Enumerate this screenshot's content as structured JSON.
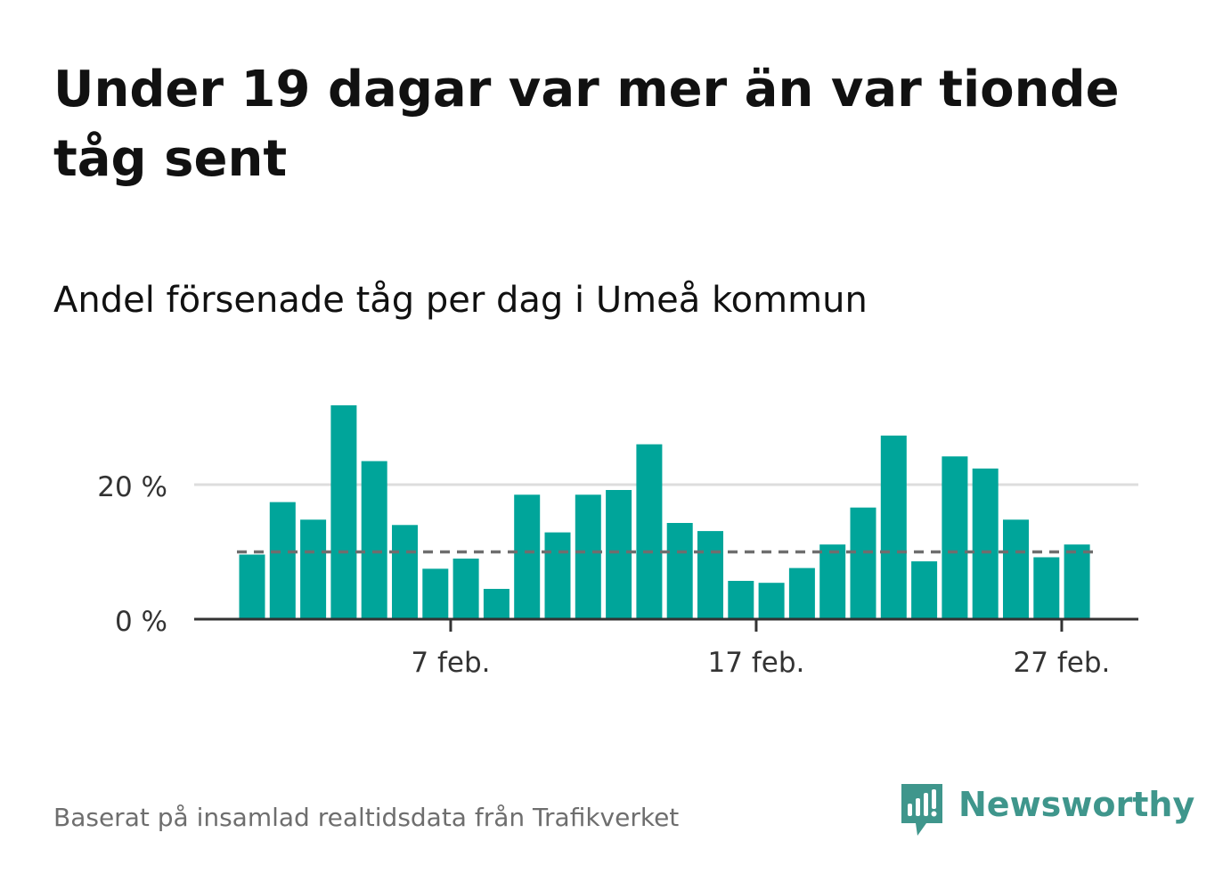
{
  "headline": "Under 19 dagar var mer än var tionde tåg sent",
  "subtitle": "Andel försenade tåg per dag i Umeå kommun",
  "source": "Baserat på insamlad realtidsdata från Trafikverket",
  "brand": {
    "name": "Newsworthy",
    "icon": "newsworthy-logo-icon",
    "color": "#3f968c"
  },
  "chart_data": {
    "type": "bar",
    "x_unit": "day",
    "x": [
      "1 feb.",
      "2 feb.",
      "3 feb.",
      "4 feb.",
      "5 feb.",
      "6 feb.",
      "7 feb.",
      "8 feb.",
      "9 feb.",
      "10 feb.",
      "11 feb.",
      "12 feb.",
      "13 feb.",
      "14 feb.",
      "15 feb.",
      "16 feb.",
      "17 feb.",
      "18 feb.",
      "19 feb.",
      "20 feb.",
      "21 feb.",
      "22 feb.",
      "23 feb.",
      "24 feb.",
      "25 feb.",
      "26 feb.",
      "27 feb.",
      "28 feb."
    ],
    "values": [
      9.6,
      17.4,
      14.8,
      31.8,
      23.5,
      14.0,
      7.5,
      9.0,
      4.5,
      18.5,
      12.9,
      18.5,
      19.2,
      26.0,
      14.3,
      13.1,
      5.7,
      5.4,
      7.6,
      11.1,
      16.6,
      27.3,
      8.6,
      24.2,
      22.4,
      14.8,
      9.2,
      11.1
    ],
    "reference_line": {
      "value": 10,
      "style": "dashed"
    },
    "y_ticks": [
      {
        "value": 0,
        "label": "0 %"
      },
      {
        "value": 20,
        "label": "20 %"
      }
    ],
    "x_ticks": [
      {
        "index": 6,
        "label": "7 feb."
      },
      {
        "index": 16,
        "label": "17 feb."
      },
      {
        "index": 26,
        "label": "27 feb."
      }
    ],
    "ylim": [
      0,
      33
    ],
    "grid": "horizontal",
    "xlabel": "",
    "ylabel": "",
    "bar_color": "#00a59a",
    "reference_color": "#6e6e6e",
    "grid_color": "#dddddd",
    "axis_color": "#333333"
  }
}
